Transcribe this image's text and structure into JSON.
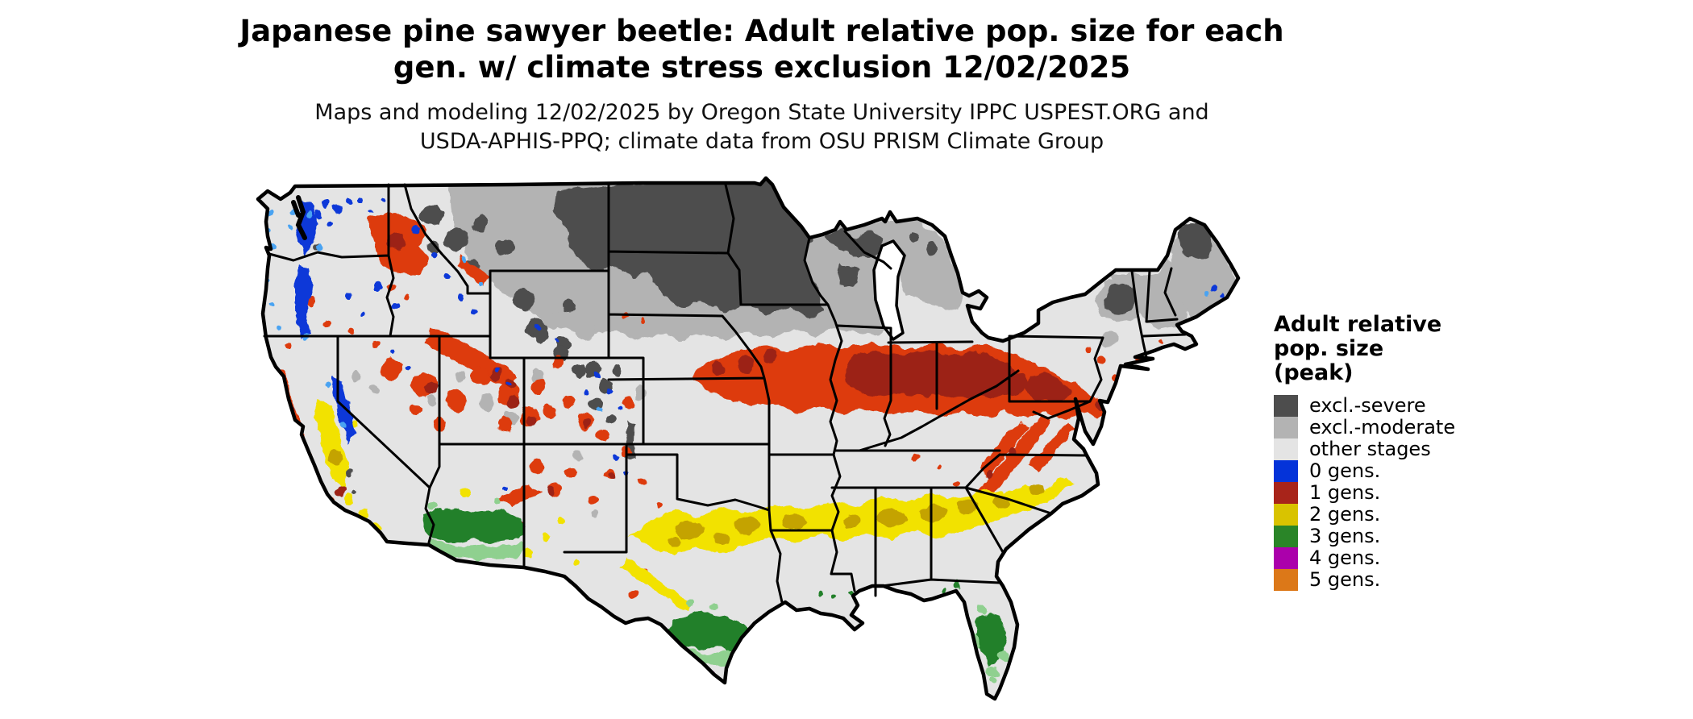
{
  "title": {
    "line1": "Japanese pine sawyer beetle: Adult relative pop. size for each",
    "line2": "gen. w/ climate stress exclusion 12/02/2025"
  },
  "subtitle": {
    "line1": "Maps and modeling 12/02/2025 by Oregon State University IPPC USPEST.ORG and",
    "line2": "USDA-APHIS-PPQ; climate data from OSU PRISM Climate Group"
  },
  "legend": {
    "title_lines": [
      "Adult relative",
      "pop. size",
      "(peak)"
    ],
    "items": [
      {
        "label": "excl.-severe",
        "color": "#4d4d4d"
      },
      {
        "label": "excl.-moderate",
        "color": "#b3b3b3"
      },
      {
        "label": "other stages",
        "color": "#e4e4e4"
      },
      {
        "label": "0 gens.",
        "color": "#0433d9"
      },
      {
        "label": "1 gens.",
        "color": "#a8241a"
      },
      {
        "label": "2 gens.",
        "color": "#d9c300"
      },
      {
        "label": "3 gens.",
        "color": "#2a8528"
      },
      {
        "label": "4 gens.",
        "color": "#ab00ab"
      },
      {
        "label": "5 gens.",
        "color": "#dc7818"
      }
    ]
  },
  "map": {
    "region": "Contiguous United States",
    "base_color": "#e4e4e4",
    "border_color": "#000000"
  }
}
